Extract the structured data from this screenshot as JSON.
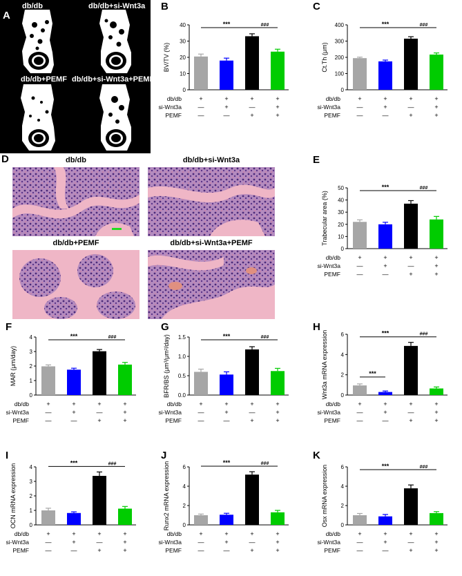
{
  "panels": {
    "A": {
      "label": "A",
      "images": [
        {
          "title": "db/db"
        },
        {
          "title": "db/db+si-Wnt3a"
        },
        {
          "title": "db/db+PEMF"
        },
        {
          "title": "db/db+si-Wnt3a+PEMF"
        }
      ]
    },
    "D": {
      "label": "D",
      "images": [
        {
          "title": "db/db"
        },
        {
          "title": "db/db+si-Wnt3a"
        },
        {
          "title": "db/db+PEMF"
        },
        {
          "title": "db/db+si-Wnt3a+PEMF"
        }
      ]
    }
  },
  "treatment_table": {
    "rows": [
      "db/db",
      "si-Wnt3a",
      "PEMF"
    ],
    "signs": [
      [
        "+",
        "+",
        "+",
        "+"
      ],
      [
        "—",
        "+",
        "—",
        "+"
      ],
      [
        "—",
        "—",
        "+",
        "+"
      ]
    ]
  },
  "colors": {
    "bars": [
      "#a6a6a6",
      "#0000ff",
      "#000000",
      "#00cc00"
    ]
  },
  "chart_data": [
    {
      "id": "B",
      "type": "bar",
      "label": "B",
      "ylabel": "BV/TV (%)",
      "ylim": [
        0,
        40
      ],
      "yticks": [
        0,
        10,
        20,
        30,
        40
      ],
      "values": [
        20.5,
        18.0,
        33.0,
        23.5
      ],
      "errors": [
        1.5,
        1.5,
        1.5,
        1.5
      ],
      "sig": [
        {
          "from": 0,
          "to": 2,
          "text": "***"
        },
        {
          "from": 2,
          "to": 3,
          "text": "###"
        }
      ]
    },
    {
      "id": "C",
      "type": "bar",
      "label": "C",
      "ylabel": "Ct.Th (μm)",
      "ylim": [
        0,
        400
      ],
      "yticks": [
        0,
        100,
        200,
        300,
        400
      ],
      "values": [
        195,
        175,
        315,
        217
      ],
      "errors": [
        6,
        8,
        12,
        10
      ],
      "sig": [
        {
          "from": 0,
          "to": 2,
          "text": "***"
        },
        {
          "from": 2,
          "to": 3,
          "text": "###"
        }
      ]
    },
    {
      "id": "E",
      "type": "bar",
      "label": "E",
      "ylabel": "Trabecular area (%)",
      "ylim": [
        0,
        50
      ],
      "yticks": [
        0,
        10,
        20,
        30,
        40,
        50
      ],
      "values": [
        22,
        20,
        37,
        24
      ],
      "errors": [
        1.7,
        1.7,
        2.5,
        2.5
      ],
      "sig": [
        {
          "from": 0,
          "to": 2,
          "text": "***"
        },
        {
          "from": 2,
          "to": 3,
          "text": "###"
        }
      ]
    },
    {
      "id": "F",
      "type": "bar",
      "label": "F",
      "ylabel": "MAR (μm/day)",
      "ylim": [
        0,
        4
      ],
      "yticks": [
        0,
        1,
        2,
        3,
        4
      ],
      "values": [
        1.98,
        1.75,
        3.02,
        2.1
      ],
      "errors": [
        0.1,
        0.1,
        0.12,
        0.15
      ],
      "sig": [
        {
          "from": 0,
          "to": 2,
          "text": "***"
        },
        {
          "from": 2,
          "to": 3,
          "text": "###"
        }
      ]
    },
    {
      "id": "G",
      "type": "bar",
      "label": "G",
      "ylabel": "BFR/BS (μm³/μm²/day)",
      "ylim": [
        0,
        1.5
      ],
      "yticks": [
        0.0,
        0.5,
        1.0,
        1.5
      ],
      "values": [
        0.6,
        0.53,
        1.18,
        0.62
      ],
      "errors": [
        0.07,
        0.07,
        0.07,
        0.07
      ],
      "sig": [
        {
          "from": 0,
          "to": 2,
          "text": "***"
        },
        {
          "from": 2,
          "to": 3,
          "text": "###"
        }
      ]
    },
    {
      "id": "H",
      "type": "bar",
      "label": "H",
      "ylabel": "Wnt3a mRNA expression",
      "ylim": [
        0,
        6
      ],
      "yticks": [
        0,
        2,
        4,
        6
      ],
      "values": [
        0.95,
        0.3,
        4.85,
        0.65
      ],
      "errors": [
        0.15,
        0.1,
        0.35,
        0.15
      ],
      "sig": [
        {
          "from": 0,
          "to": 2,
          "text": "***"
        },
        {
          "from": 0,
          "to": 1,
          "text": "***"
        },
        {
          "from": 2,
          "to": 3,
          "text": "###"
        }
      ]
    },
    {
      "id": "I",
      "type": "bar",
      "label": "I",
      "ylabel": "OCN mRNA expression",
      "ylim": [
        0,
        4
      ],
      "yticks": [
        0,
        1,
        2,
        3,
        4
      ],
      "values": [
        1.0,
        0.82,
        3.38,
        1.12
      ],
      "errors": [
        0.15,
        0.08,
        0.27,
        0.15
      ],
      "sig": [
        {
          "from": 0,
          "to": 2,
          "text": "***"
        },
        {
          "from": 2,
          "to": 3,
          "text": "###"
        }
      ]
    },
    {
      "id": "J",
      "type": "bar",
      "label": "J",
      "ylabel": "Runx2 mRNA expression",
      "ylim": [
        0,
        6
      ],
      "yticks": [
        0,
        2,
        4,
        6
      ],
      "values": [
        1.0,
        1.05,
        5.2,
        1.3
      ],
      "errors": [
        0.12,
        0.15,
        0.3,
        0.2
      ],
      "sig": [
        {
          "from": 0,
          "to": 2,
          "text": "***"
        },
        {
          "from": 2,
          "to": 3,
          "text": "###"
        }
      ]
    },
    {
      "id": "K",
      "type": "bar",
      "label": "K",
      "ylabel": "Osx mRNA expression",
      "ylim": [
        0,
        6
      ],
      "yticks": [
        0,
        2,
        4,
        6
      ],
      "values": [
        1.0,
        0.88,
        3.78,
        1.22
      ],
      "errors": [
        0.18,
        0.2,
        0.35,
        0.15
      ],
      "sig": [
        {
          "from": 0,
          "to": 2,
          "text": "***"
        },
        {
          "from": 2,
          "to": 3,
          "text": "###"
        }
      ]
    }
  ]
}
